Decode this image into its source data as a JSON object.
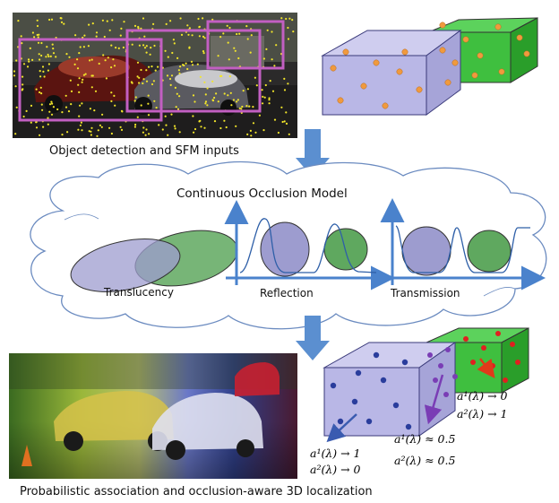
{
  "captions": {
    "top": "Object detection and SFM inputs",
    "cloud_title": "Continuous Occlusion Model",
    "translucency": "Translucency",
    "reflection": "Reflection",
    "transmission": "Transmission",
    "bottom": "Probabilistic association and occlusion-aware 3D localization"
  },
  "annotations": {
    "blue_a1": "a¹(λ) → 1",
    "blue_a2": "a²(λ) → 0",
    "purple_a1": "a¹(λ) ≈ 0.5",
    "purple_a2": "a²(λ) ≈ 0.5",
    "red_a1": "a¹(λ) → 0",
    "red_a2": "a²(λ) → 1"
  },
  "colors": {
    "box_purple": "#b9b7e6",
    "box_green": "#3fbf3f",
    "ellipse_purple": "#9d9ccf",
    "ellipse_green": "#5fa85f",
    "arrow_blue": "#5b8fd0",
    "curve_blue": "#2e5fa8",
    "point_orange": "#f09a3e",
    "point_blue": "#2a3d9c",
    "point_red": "#e02020",
    "point_purple": "#7a3db5",
    "detection_box": "#c25fc2"
  }
}
